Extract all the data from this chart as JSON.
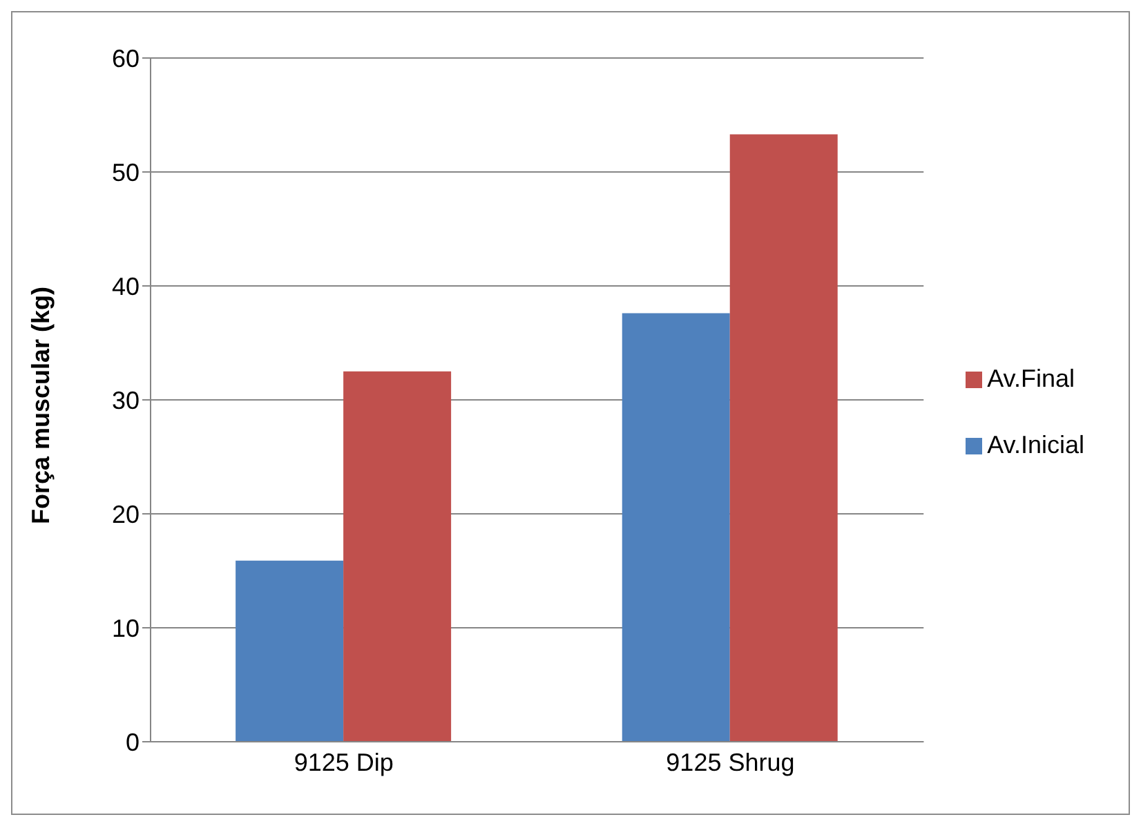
{
  "chart_data": {
    "type": "bar",
    "ylabel": "Força muscular (kg)",
    "categories": [
      "9125 Dip",
      "9125 Shrug"
    ],
    "series": [
      {
        "name": "Av.Inicial",
        "color": "#4f81bd",
        "values": [
          15.9,
          37.6
        ]
      },
      {
        "name": "Av.Final",
        "color": "#c0504d",
        "values": [
          32.5,
          53.3
        ]
      }
    ],
    "ylim": [
      0,
      60
    ],
    "yticks": [
      0,
      10,
      20,
      30,
      40,
      50,
      60
    ],
    "grid": "y",
    "legend": "right"
  }
}
